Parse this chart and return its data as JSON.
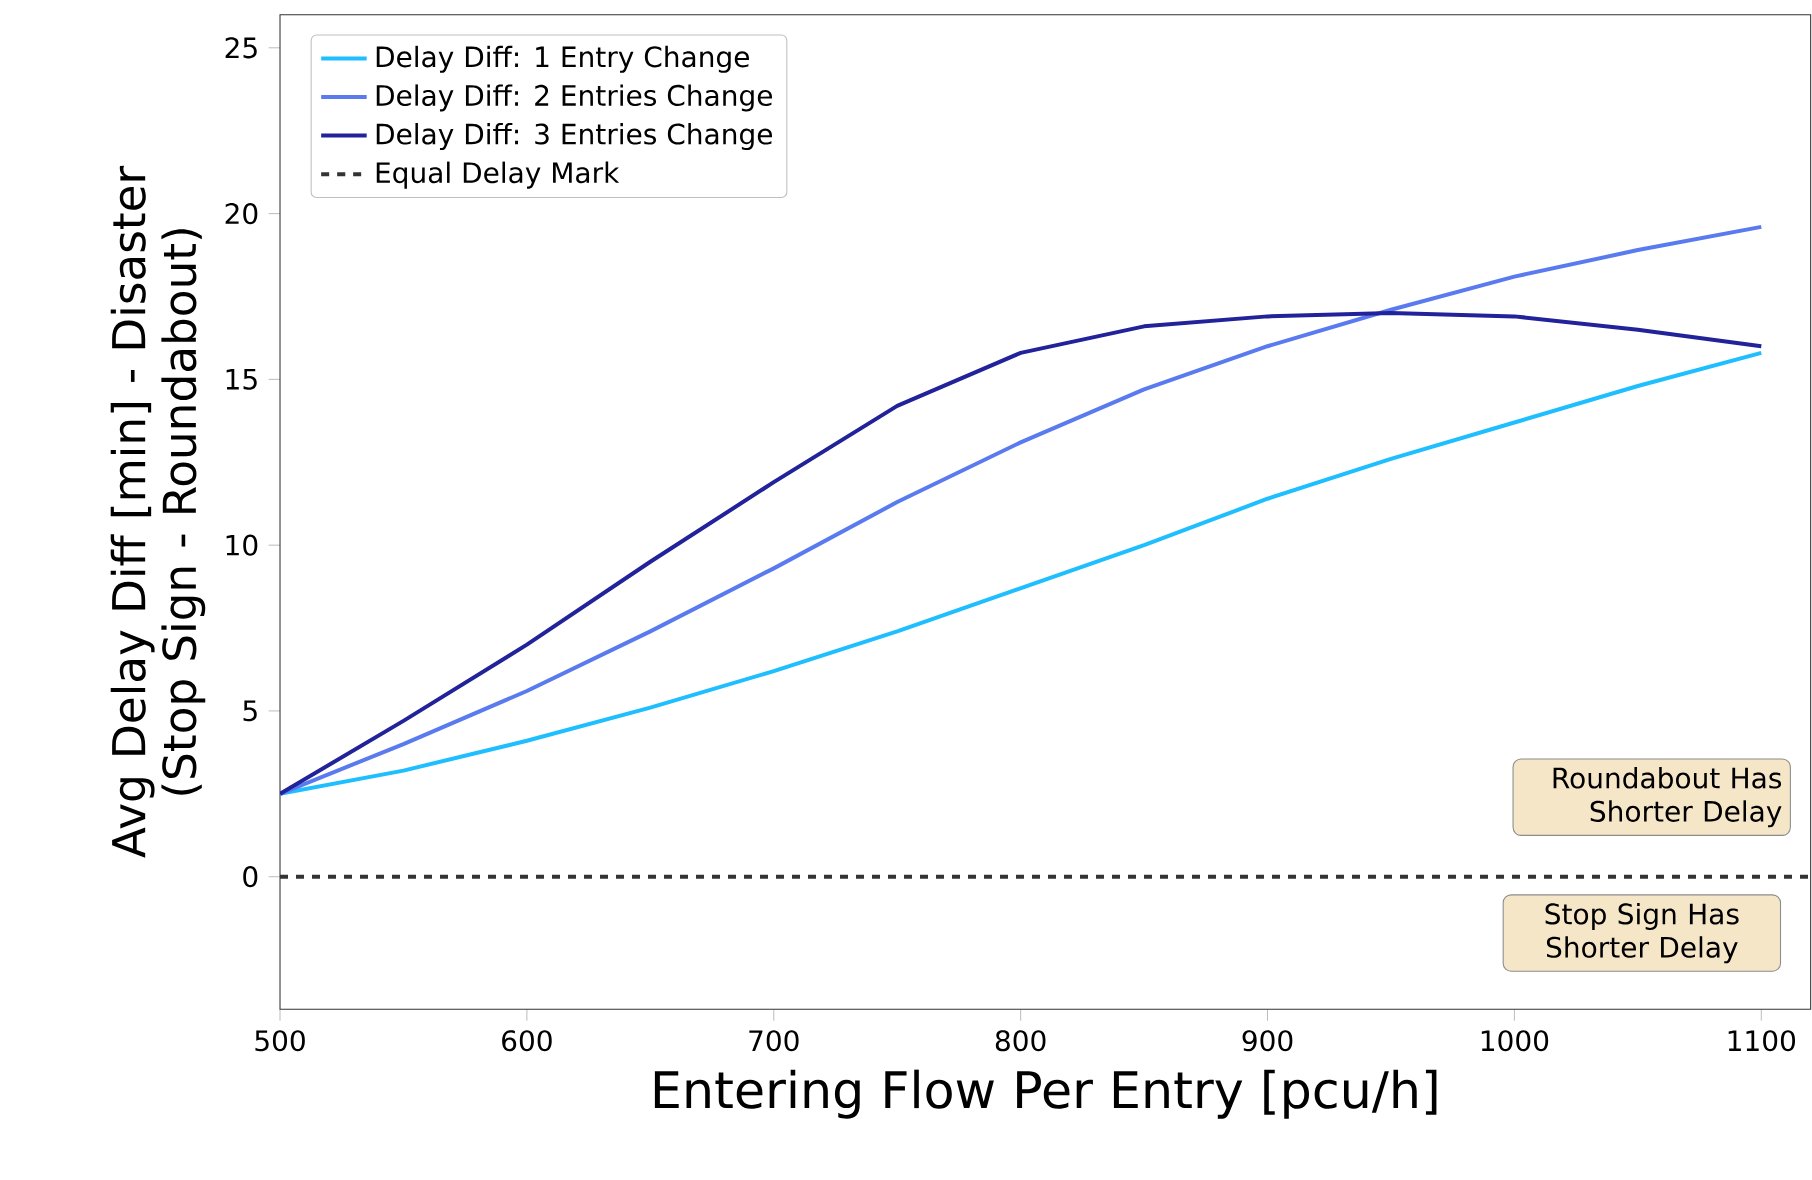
{
  "chart_data": {
    "type": "line",
    "xlabel": "Entering Flow Per Entry [pcu/h]",
    "ylabel": "Avg Delay Diff [min] - Disaster (Stop Sign - Roundabout)",
    "x": [
      500,
      550,
      600,
      650,
      700,
      750,
      800,
      850,
      900,
      950,
      1000,
      1050,
      1100
    ],
    "series": [
      {
        "name": "Delay Diff: 1 Entry Change",
        "color": "#1fbfff",
        "values": [
          2.5,
          3.2,
          4.1,
          5.1,
          6.2,
          7.4,
          8.7,
          10.0,
          11.4,
          12.6,
          13.7,
          14.8,
          15.8
        ]
      },
      {
        "name": "Delay Diff: 2 Entries Change",
        "color": "#5a7bef",
        "values": [
          2.5,
          4.0,
          5.6,
          7.4,
          9.3,
          11.3,
          13.1,
          14.7,
          16.0,
          17.1,
          18.1,
          18.9,
          19.6
        ]
      },
      {
        "name": "Delay Diff: 3 Entries Change",
        "color": "#22229a",
        "values": [
          2.5,
          4.7,
          7.0,
          9.5,
          11.9,
          14.2,
          15.8,
          16.6,
          16.9,
          17.0,
          16.9,
          16.5,
          16.0
        ]
      }
    ],
    "ref_lines": [
      {
        "axis": "y",
        "value": 0,
        "label": "Equal Delay Mark",
        "color": "#333333",
        "line_style": "dashed"
      }
    ],
    "annotations": [
      "Roundabout Has Shorter Delay",
      "Stop Sign Has Shorter Delay"
    ],
    "xlim": [
      500,
      1120
    ],
    "ylim": [
      -4,
      26
    ],
    "xticks": [
      500,
      600,
      700,
      800,
      900,
      1000,
      1100
    ],
    "yticks": [
      0,
      5,
      10,
      15,
      20,
      25
    ],
    "legend": "top left",
    "marker": "none",
    "line_style": "solid",
    "grid": false
  }
}
